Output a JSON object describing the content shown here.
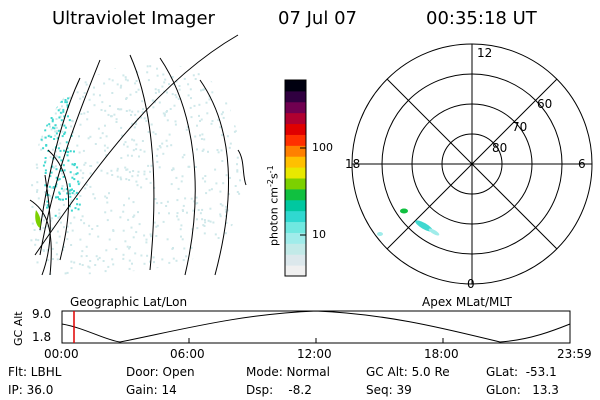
{
  "header": {
    "instrument": "Ultraviolet Imager",
    "date": "07 Jul 07",
    "time": "00:35:18 UT"
  },
  "colorbar": {
    "label_text": "photon cm",
    "label_exp1": "-2",
    "label_s": "s",
    "label_exp2": "-1",
    "ticks": [
      "100",
      "10"
    ],
    "colors": [
      "#f0f0f0",
      "#dce8ec",
      "#c2eae8",
      "#a0ecea",
      "#70e8e0",
      "#30d8d0",
      "#00c8a0",
      "#10c040",
      "#7cd000",
      "#e8e800",
      "#ffc000",
      "#ff8000",
      "#ff3000",
      "#e00000",
      "#b00030",
      "#700050",
      "#300040",
      "#000010"
    ]
  },
  "polar_plot": {
    "mlt_labels": {
      "top": "12",
      "bottom": "0",
      "left": "18",
      "right": "6"
    },
    "lat_labels": [
      "60",
      "70",
      "80"
    ]
  },
  "geo_panel_label": "Geographic Lat/Lon",
  "apex_panel_label": "Apex MLat/MLT",
  "altitude_plot": {
    "axis_label": "GC Alt",
    "y_ticks": [
      "9.0",
      "1.8"
    ],
    "x_ticks": [
      "00:00",
      "06:00",
      "12:00",
      "18:00",
      "23:59"
    ]
  },
  "info": {
    "filter": "Flt: LBHL",
    "ip": "IP: 36.0",
    "door": "Door: Open",
    "gain": "Gain: 14",
    "mode": "Mode: Normal",
    "dsp": "Dsp:    -8.2",
    "gc_alt": "GC Alt: 5.0 Re",
    "seq": "Seq: 39",
    "glat": "GLat:  -53.1",
    "glon": "GLon:   13.3"
  }
}
